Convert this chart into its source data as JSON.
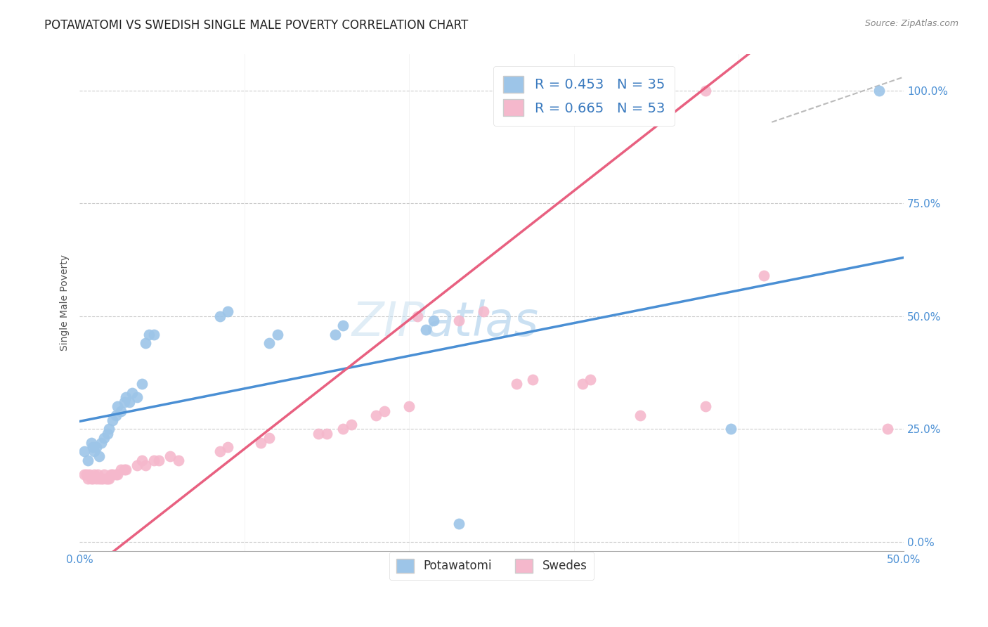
{
  "title": "POTAWATOMI VS SWEDISH SINGLE MALE POVERTY CORRELATION CHART",
  "source": "Source: ZipAtlas.com",
  "ylabel": "Single Male Poverty",
  "x_ticks": [
    0.0,
    0.1,
    0.2,
    0.3,
    0.4,
    0.5
  ],
  "x_tick_labels": [
    "0.0%",
    "",
    "",
    "",
    "",
    "50.0%"
  ],
  "y_tick_labels_right": [
    "0.0%",
    "25.0%",
    "50.0%",
    "75.0%",
    "100.0%"
  ],
  "y_ticks_right": [
    0.0,
    0.25,
    0.5,
    0.75,
    1.0
  ],
  "xlim": [
    0.0,
    0.5
  ],
  "ylim": [
    -0.02,
    1.08
  ],
  "legend_label1": "R = 0.453   N = 35",
  "legend_label2": "R = 0.665   N = 53",
  "legend_label_bot1": "Potawatomi",
  "legend_label_bot2": "Swedes",
  "blue_color": "#9dc5e8",
  "pink_color": "#f5b8cc",
  "blue_line_color": "#4a8fd4",
  "pink_line_color": "#e86080",
  "watermark_zip": "ZIP",
  "watermark_atlas": "atlas",
  "blue_line": [
    0.0,
    0.267,
    0.5,
    0.63
  ],
  "pink_line": [
    0.0,
    -0.08,
    0.5,
    1.35
  ],
  "blue_points": [
    [
      0.003,
      0.2
    ],
    [
      0.005,
      0.18
    ],
    [
      0.007,
      0.22
    ],
    [
      0.008,
      0.21
    ],
    [
      0.009,
      0.2
    ],
    [
      0.01,
      0.21
    ],
    [
      0.012,
      0.19
    ],
    [
      0.013,
      0.22
    ],
    [
      0.015,
      0.23
    ],
    [
      0.017,
      0.24
    ],
    [
      0.018,
      0.25
    ],
    [
      0.02,
      0.27
    ],
    [
      0.022,
      0.28
    ],
    [
      0.023,
      0.3
    ],
    [
      0.025,
      0.29
    ],
    [
      0.027,
      0.31
    ],
    [
      0.028,
      0.32
    ],
    [
      0.03,
      0.31
    ],
    [
      0.032,
      0.33
    ],
    [
      0.035,
      0.32
    ],
    [
      0.038,
      0.35
    ],
    [
      0.04,
      0.44
    ],
    [
      0.042,
      0.46
    ],
    [
      0.045,
      0.46
    ],
    [
      0.085,
      0.5
    ],
    [
      0.09,
      0.51
    ],
    [
      0.115,
      0.44
    ],
    [
      0.12,
      0.46
    ],
    [
      0.155,
      0.46
    ],
    [
      0.16,
      0.48
    ],
    [
      0.21,
      0.47
    ],
    [
      0.215,
      0.49
    ],
    [
      0.23,
      0.04
    ],
    [
      0.395,
      0.25
    ],
    [
      0.485,
      1.0
    ]
  ],
  "pink_points": [
    [
      0.003,
      0.15
    ],
    [
      0.004,
      0.15
    ],
    [
      0.005,
      0.14
    ],
    [
      0.006,
      0.15
    ],
    [
      0.007,
      0.14
    ],
    [
      0.008,
      0.14
    ],
    [
      0.009,
      0.15
    ],
    [
      0.01,
      0.14
    ],
    [
      0.011,
      0.15
    ],
    [
      0.012,
      0.14
    ],
    [
      0.013,
      0.14
    ],
    [
      0.014,
      0.14
    ],
    [
      0.015,
      0.15
    ],
    [
      0.016,
      0.14
    ],
    [
      0.017,
      0.14
    ],
    [
      0.018,
      0.14
    ],
    [
      0.019,
      0.15
    ],
    [
      0.02,
      0.15
    ],
    [
      0.022,
      0.15
    ],
    [
      0.023,
      0.15
    ],
    [
      0.025,
      0.16
    ],
    [
      0.027,
      0.16
    ],
    [
      0.028,
      0.16
    ],
    [
      0.035,
      0.17
    ],
    [
      0.038,
      0.18
    ],
    [
      0.04,
      0.17
    ],
    [
      0.045,
      0.18
    ],
    [
      0.048,
      0.18
    ],
    [
      0.055,
      0.19
    ],
    [
      0.06,
      0.18
    ],
    [
      0.085,
      0.2
    ],
    [
      0.09,
      0.21
    ],
    [
      0.11,
      0.22
    ],
    [
      0.115,
      0.23
    ],
    [
      0.145,
      0.24
    ],
    [
      0.15,
      0.24
    ],
    [
      0.16,
      0.25
    ],
    [
      0.165,
      0.26
    ],
    [
      0.18,
      0.28
    ],
    [
      0.185,
      0.29
    ],
    [
      0.2,
      0.3
    ],
    [
      0.205,
      0.5
    ],
    [
      0.23,
      0.49
    ],
    [
      0.245,
      0.51
    ],
    [
      0.265,
      0.35
    ],
    [
      0.275,
      0.36
    ],
    [
      0.305,
      0.35
    ],
    [
      0.31,
      0.36
    ],
    [
      0.34,
      0.28
    ],
    [
      0.38,
      0.3
    ],
    [
      0.415,
      0.59
    ],
    [
      0.49,
      0.25
    ],
    [
      0.38,
      1.0
    ]
  ],
  "diagonal_line": [
    0.42,
    0.93,
    0.5,
    1.03
  ],
  "title_fontsize": 12,
  "axis_label_fontsize": 10,
  "tick_fontsize": 11
}
